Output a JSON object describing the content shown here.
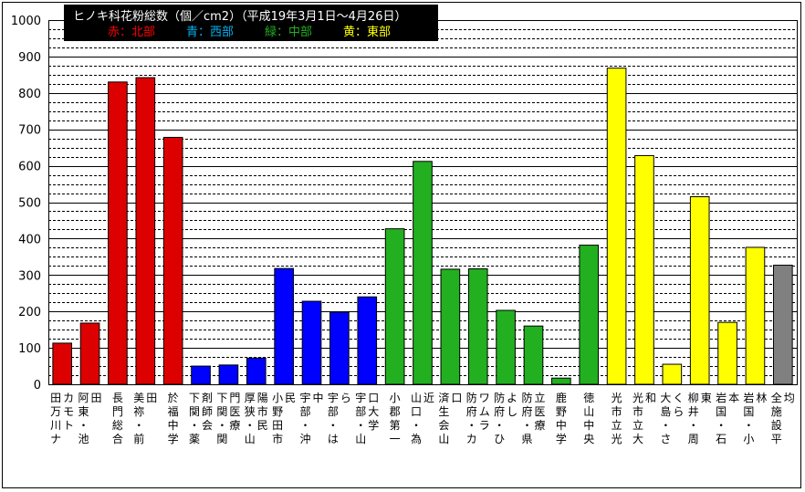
{
  "chart_data": {
    "type": "bar",
    "title": "ヒノキ科花粉総数（個／cm2）（平成19年3月1日〜4月26日）",
    "legend": [
      {
        "label": "赤：北部",
        "color": "#ff0000"
      },
      {
        "label": "青：西部",
        "color": "#00b0f0"
      },
      {
        "label": "緑：中部",
        "color": "#22b020"
      },
      {
        "label": "黄：東部",
        "color": "#ffff00"
      }
    ],
    "ylim": [
      0,
      1000
    ],
    "yticks": [
      "0",
      "100",
      "200",
      "300",
      "400",
      "500",
      "600",
      "700",
      "800",
      "900",
      "1000"
    ],
    "grid": true,
    "categories": [
      "田万川ナカモト",
      "阿東・池田",
      "長門総合",
      "美祢・前田",
      "於福中学",
      "下関・薬剤師会",
      "下関・関門医療",
      "厚狭・山陽市民",
      "小野田市民",
      "宇部・沖中",
      "宇部・はら",
      "宇部・山口大学",
      "小郡第一",
      "山口・為近",
      "済生会山口",
      "防府・カワムラ",
      "防府・ひよし",
      "防府・県立医療",
      "鹿野中学",
      "徳山中央",
      "光市立光",
      "光市立大和",
      "大島・さくら",
      "柳井・周東",
      "岩国・石本",
      "岩国・小林",
      "全施設平均"
    ],
    "values": [
      113,
      168,
      830,
      842,
      678,
      50,
      53,
      72,
      318,
      228,
      198,
      240,
      427,
      612,
      316,
      317,
      203,
      160,
      17,
      382,
      868,
      628,
      55,
      515,
      170,
      376,
      327
    ],
    "region_colors": [
      "#dd0000",
      "#dd0000",
      "#dd0000",
      "#dd0000",
      "#dd0000",
      "#0000ff",
      "#0000ff",
      "#0000ff",
      "#0000ff",
      "#0000ff",
      "#0000ff",
      "#0000ff",
      "#22b020",
      "#22b020",
      "#22b020",
      "#22b020",
      "#22b020",
      "#22b020",
      "#22b020",
      "#22b020",
      "#ffff00",
      "#ffff00",
      "#ffff00",
      "#ffff00",
      "#ffff00",
      "#ffff00",
      "#808080"
    ]
  }
}
